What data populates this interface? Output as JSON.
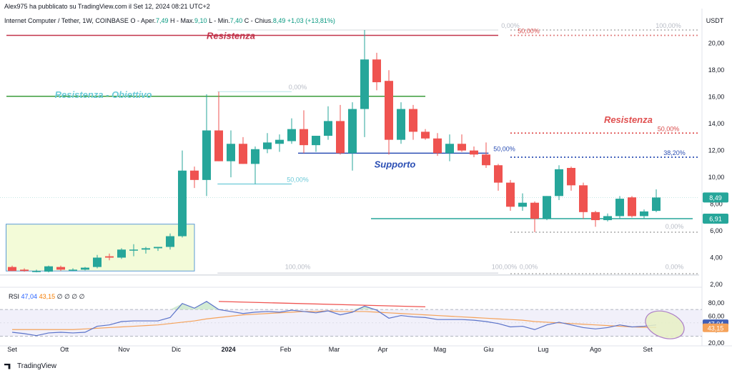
{
  "header": {
    "published": "Alex975 ha pubblicato su TradingView.com il Set 12, 2024 08:21 UTC+2",
    "symbol": "Internet Computer / Tether, 1W, COINBASE",
    "o_label": "O - Aper.",
    "o_val": "7,49",
    "h_label": "H - Max.",
    "h_val": "9,10",
    "l_label": "L - Min.",
    "l_val": "7,40",
    "c_label": "C - Chius.",
    "c_val": "8,49",
    "chg": "+1,03 (+13,81%)"
  },
  "rsi_header": {
    "label": "RSI",
    "v1": "47,04",
    "v2": "43,15",
    "dots": "∅ ∅ ∅ ∅"
  },
  "footer": {
    "brand": "TradingView"
  },
  "currency": "USDT",
  "colors": {
    "up": "#26a69a",
    "down": "#ef5350",
    "rsi": "#5b73c9",
    "rsi_ma": "#f5a25a"
  },
  "chart_data": {
    "type": "candlestick",
    "price_axis": {
      "ylim": [
        2,
        21
      ],
      "ticks": [
        "2,00",
        "4,00",
        "6,00",
        "8,00",
        "10,00",
        "12,00",
        "14,00",
        "16,00",
        "18,00",
        "20,00"
      ],
      "tick_values": [
        2,
        4,
        6,
        8,
        10,
        12,
        14,
        16,
        18,
        20
      ]
    },
    "x_tick_labels": [
      {
        "label": "Set",
        "i": 0
      },
      {
        "label": "Ott",
        "i": 4.3
      },
      {
        "label": "Nov",
        "i": 9.2
      },
      {
        "label": "Dic",
        "i": 13.5
      },
      {
        "label": "2024",
        "i": 17.8
      },
      {
        "label": "Feb",
        "i": 22.5
      },
      {
        "label": "Mar",
        "i": 26.5
      },
      {
        "label": "Apr",
        "i": 30.5
      },
      {
        "label": "Mag",
        "i": 35.2
      },
      {
        "label": "Giu",
        "i": 39.2
      },
      {
        "label": "Lug",
        "i": 43.7
      },
      {
        "label": "Ago",
        "i": 48
      },
      {
        "label": "Set",
        "i": 52.3
      }
    ],
    "candles": [
      {
        "o": 3.3,
        "h": 3.4,
        "l": 3.0,
        "c": 3.0
      },
      {
        "o": 3.1,
        "h": 3.2,
        "l": 2.95,
        "c": 3.0
      },
      {
        "o": 3.0,
        "h": 3.1,
        "l": 2.9,
        "c": 3.0
      },
      {
        "o": 2.95,
        "h": 3.4,
        "l": 2.9,
        "c": 3.35
      },
      {
        "o": 3.3,
        "h": 3.4,
        "l": 3.0,
        "c": 3.1
      },
      {
        "o": 3.1,
        "h": 3.2,
        "l": 3.0,
        "c": 3.1
      },
      {
        "o": 3.1,
        "h": 3.3,
        "l": 3.05,
        "c": 3.25
      },
      {
        "o": 3.3,
        "h": 4.2,
        "l": 3.2,
        "c": 4.0
      },
      {
        "o": 4.1,
        "h": 4.3,
        "l": 3.8,
        "c": 4.0
      },
      {
        "o": 4.0,
        "h": 4.7,
        "l": 3.9,
        "c": 4.6
      },
      {
        "o": 4.6,
        "h": 5.0,
        "l": 4.1,
        "c": 4.6
      },
      {
        "o": 4.6,
        "h": 4.8,
        "l": 4.3,
        "c": 4.7
      },
      {
        "o": 4.7,
        "h": 4.8,
        "l": 4.5,
        "c": 4.8
      },
      {
        "o": 4.8,
        "h": 5.8,
        "l": 4.6,
        "c": 5.6
      },
      {
        "o": 5.6,
        "h": 12.0,
        "l": 5.5,
        "c": 10.5
      },
      {
        "o": 10.5,
        "h": 10.8,
        "l": 9.2,
        "c": 9.8
      },
      {
        "o": 9.8,
        "h": 16.2,
        "l": 8.6,
        "c": 13.5
      },
      {
        "o": 13.5,
        "h": 16.4,
        "l": 11.2,
        "c": 11.2
      },
      {
        "o": 11.2,
        "h": 13.5,
        "l": 10.0,
        "c": 12.5
      },
      {
        "o": 12.5,
        "h": 13.0,
        "l": 11.0,
        "c": 11.0
      },
      {
        "o": 11.0,
        "h": 12.3,
        "l": 9.5,
        "c": 12.1
      },
      {
        "o": 12.1,
        "h": 13.3,
        "l": 11.8,
        "c": 12.6
      },
      {
        "o": 12.5,
        "h": 13.2,
        "l": 11.9,
        "c": 12.8
      },
      {
        "o": 12.7,
        "h": 14.4,
        "l": 12.5,
        "c": 13.6
      },
      {
        "o": 13.6,
        "h": 15.0,
        "l": 11.8,
        "c": 12.4
      },
      {
        "o": 12.4,
        "h": 13.1,
        "l": 11.9,
        "c": 13.1
      },
      {
        "o": 13.1,
        "h": 15.3,
        "l": 12.8,
        "c": 14.2
      },
      {
        "o": 14.2,
        "h": 15.4,
        "l": 11.7,
        "c": 11.8
      },
      {
        "o": 11.8,
        "h": 15.6,
        "l": 10.5,
        "c": 15.1
      },
      {
        "o": 15.1,
        "h": 21.0,
        "l": 13.0,
        "c": 18.8
      },
      {
        "o": 18.8,
        "h": 19.3,
        "l": 16.5,
        "c": 17.1
      },
      {
        "o": 17.2,
        "h": 18.0,
        "l": 11.7,
        "c": 12.8
      },
      {
        "o": 12.8,
        "h": 15.6,
        "l": 12.5,
        "c": 15.1
      },
      {
        "o": 15.1,
        "h": 15.4,
        "l": 12.8,
        "c": 13.4
      },
      {
        "o": 13.4,
        "h": 13.6,
        "l": 12.8,
        "c": 12.9
      },
      {
        "o": 12.9,
        "h": 13.3,
        "l": 11.6,
        "c": 11.8
      },
      {
        "o": 11.8,
        "h": 13.2,
        "l": 11.2,
        "c": 12.5
      },
      {
        "o": 12.5,
        "h": 13.2,
        "l": 11.9,
        "c": 12.0
      },
      {
        "o": 12.0,
        "h": 12.3,
        "l": 11.5,
        "c": 11.7
      },
      {
        "o": 11.7,
        "h": 12.6,
        "l": 10.7,
        "c": 10.9
      },
      {
        "o": 10.9,
        "h": 11.0,
        "l": 9.0,
        "c": 9.6
      },
      {
        "o": 9.6,
        "h": 9.8,
        "l": 7.5,
        "c": 7.8
      },
      {
        "o": 7.8,
        "h": 8.8,
        "l": 7.5,
        "c": 8.1
      },
      {
        "o": 8.1,
        "h": 8.2,
        "l": 5.9,
        "c": 6.9
      },
      {
        "o": 6.9,
        "h": 8.6,
        "l": 6.8,
        "c": 8.6
      },
      {
        "o": 8.6,
        "h": 10.9,
        "l": 8.3,
        "c": 10.6
      },
      {
        "o": 10.7,
        "h": 10.8,
        "l": 9.0,
        "c": 9.4
      },
      {
        "o": 9.4,
        "h": 9.6,
        "l": 6.9,
        "c": 7.4
      },
      {
        "o": 7.4,
        "h": 7.5,
        "l": 6.3,
        "c": 6.8
      },
      {
        "o": 6.8,
        "h": 7.3,
        "l": 6.7,
        "c": 7.1
      },
      {
        "o": 7.1,
        "h": 8.6,
        "l": 6.9,
        "c": 8.4
      },
      {
        "o": 8.5,
        "h": 8.6,
        "l": 7.0,
        "c": 7.1
      },
      {
        "o": 7.1,
        "h": 7.6,
        "l": 6.9,
        "c": 7.45
      },
      {
        "o": 7.49,
        "h": 9.1,
        "l": 7.4,
        "c": 8.49
      }
    ],
    "hlines": [
      {
        "y": 20.6,
        "i0": 0,
        "i1": 40,
        "color": "#c2334a",
        "label": "Resistenza",
        "label_i": 18,
        "label_y": 20.6,
        "label_color": "#c2334a"
      },
      {
        "y": 16.05,
        "i0": 0,
        "i1": 34,
        "color": "#3a9c3a",
        "label": "Resistenza - Obiettivo",
        "label_i": 7.5,
        "label_y": 16.2,
        "label_color": "#6ccad8"
      },
      {
        "y": 11.8,
        "i0": 24,
        "i1": 39.2,
        "color": "#2c4fb4",
        "label": "Supporto",
        "label_i": 31.5,
        "label_y": 11.0,
        "label_color": "#2c4fb4"
      },
      {
        "y": 6.91,
        "i0": 30,
        "i1": 56,
        "color": "#26a69a",
        "label": "",
        "label_i": 0,
        "label_y": 0,
        "label_color": "#26a69a"
      }
    ],
    "dotted_lines": [
      {
        "y": 13.3,
        "i0": 41,
        "i1": 56,
        "color": "#e05050"
      },
      {
        "y": 11.5,
        "i0": 41,
        "i1": 56,
        "color": "#2c4fb4"
      },
      {
        "y": 20.6,
        "i0": 41,
        "i1": 56,
        "color": "#e08080"
      },
      {
        "y": 21.0,
        "i0": 41,
        "i1": 56,
        "color": "#bbbbbb"
      },
      {
        "y": 5.9,
        "i0": 41,
        "i1": 56,
        "color": "#bbbbbb"
      },
      {
        "y": 2.8,
        "i0": 41,
        "i1": 56,
        "color": "#bbbbbb"
      }
    ],
    "fib_labels": [
      {
        "text": "0,00%",
        "i": 41,
        "y": 21.0,
        "color": "#b8bcc6"
      },
      {
        "text": "50,00%",
        "i": 42.5,
        "y": 20.6,
        "color": "#d94a4a"
      },
      {
        "text": "100,00%",
        "i": 54,
        "y": 21.0,
        "color": "#b8bcc6"
      },
      {
        "text": "0,00%",
        "i": 23.5,
        "y": 16.4,
        "color": "#b8bcc6"
      },
      {
        "text": "50,00%",
        "i": 54,
        "y": 13.3,
        "color": "#d94a4a"
      },
      {
        "text": "50,00%",
        "i": 40.5,
        "y": 11.8,
        "color": "#2c4fb4"
      },
      {
        "text": "38,20%",
        "i": 54.5,
        "y": 11.5,
        "color": "#2c4fb4"
      },
      {
        "text": "50,00%",
        "i": 23.5,
        "y": 9.5,
        "color": "#6ccad8"
      },
      {
        "text": "0,00%",
        "i": 54.5,
        "y": 6.0,
        "color": "#b8bcc6"
      },
      {
        "text": "100,00%",
        "i": 23.5,
        "y": 3.0,
        "color": "#b8bcc6"
      },
      {
        "text": "100,00%",
        "i": 40.5,
        "y": 3.0,
        "color": "#b8bcc6"
      },
      {
        "text": "0,00%",
        "i": 42.5,
        "y": 3.0,
        "color": "#b8bcc6"
      },
      {
        "text": "0,00%",
        "i": 54.5,
        "y": 3.0,
        "color": "#b8bcc6"
      },
      {
        "text": "Resistenza",
        "i": 50.7,
        "y": 13.9,
        "color": "#e05050",
        "big": true
      }
    ],
    "price_tags": [
      {
        "text": "8,49",
        "y": 8.49,
        "color": "#26a69a"
      },
      {
        "text": "6,91",
        "y": 6.91,
        "color": "#26a69a"
      }
    ],
    "accumulation_box": {
      "i0": -0.5,
      "i1": 15,
      "y0": 3.0,
      "y1": 6.5
    },
    "rsi": {
      "ylim": [
        20,
        100
      ],
      "ticks": [
        "80,00",
        "60,00",
        "40,00",
        "20,00"
      ],
      "tick_values": [
        80,
        60,
        40,
        20
      ],
      "levels": [
        70,
        30
      ],
      "values": [
        36,
        34,
        31,
        35,
        36,
        35,
        36,
        45,
        47,
        52,
        53,
        53,
        53,
        58,
        79,
        72,
        82,
        70,
        67,
        64,
        66,
        67,
        66,
        69,
        67,
        65,
        68,
        62,
        66,
        75,
        69,
        57,
        61,
        59,
        58,
        55,
        55,
        55,
        54,
        52,
        49,
        44,
        45,
        40,
        47,
        51,
        47,
        43,
        41,
        43,
        47,
        44,
        45,
        47
      ],
      "ma": [
        40,
        40,
        40,
        40,
        40,
        40,
        41,
        42,
        43,
        44,
        45,
        46,
        47,
        49,
        51,
        53,
        56,
        58,
        60,
        62,
        63,
        64,
        65,
        66,
        67,
        67,
        68,
        67,
        67,
        67,
        66,
        65,
        64,
        63,
        62,
        61,
        60,
        59,
        58,
        57,
        56,
        55,
        54,
        52,
        51,
        50,
        49,
        48,
        47,
        46,
        45,
        44,
        43.5,
        43.15
      ],
      "tags": [
        {
          "text": "47,04",
          "y": 47.04,
          "color": "#3f5fb8"
        },
        {
          "text": "43,15",
          "y": 43.15,
          "color": "#f5a25a"
        }
      ]
    }
  }
}
